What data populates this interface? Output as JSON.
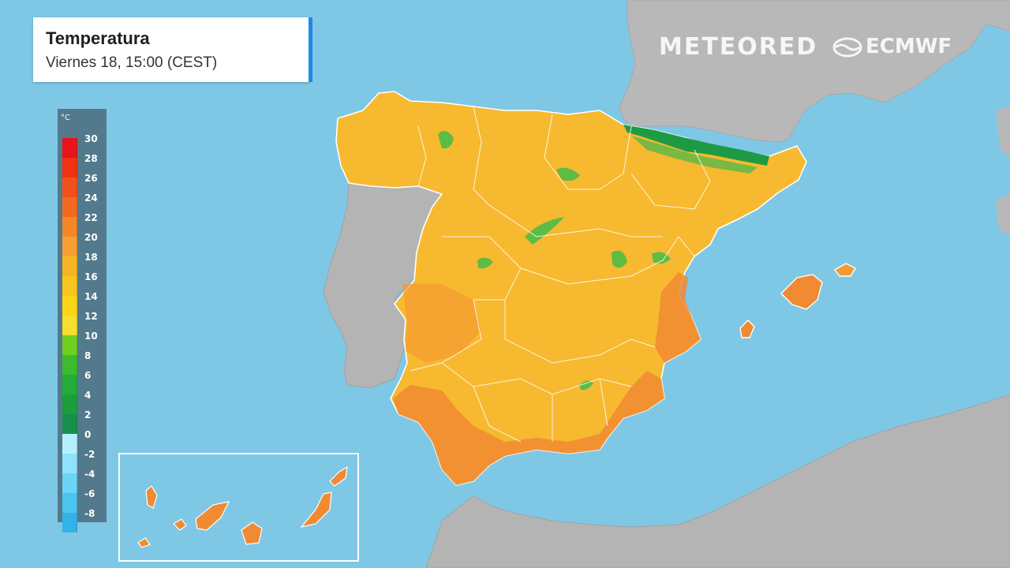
{
  "header": {
    "title": "Temperatura",
    "subtitle": "Viernes 18, 15:00 (CEST)"
  },
  "brand": {
    "meteored": "METEORED",
    "ecmwf": "ECMWF"
  },
  "legend": {
    "unit": "°C",
    "ticks": [
      "30",
      "28",
      "26",
      "24",
      "22",
      "20",
      "18",
      "16",
      "14",
      "12",
      "10",
      "8",
      "6",
      "4",
      "2",
      "0",
      "-2",
      "-4",
      "-6",
      "-8"
    ],
    "colors": [
      "#e8141b",
      "#f03210",
      "#f2501a",
      "#f36a1e",
      "#f5862a",
      "#f79f30",
      "#f7b526",
      "#f9c521",
      "#fbd518",
      "#f5df30",
      "#6fcf1e",
      "#3cbb2c",
      "#22ad38",
      "#1a9f3c",
      "#16904a",
      "#b6f0ff",
      "#8fe2fb",
      "#6cd4f6",
      "#4cc4f0",
      "#33b2ea"
    ]
  },
  "colors": {
    "sea": "#7ec8e6",
    "land_neighbor": "#b6b6b6",
    "warm_base": "#f7b930",
    "hot": "#f08a33",
    "cool": "#54b846",
    "cold": "#1d9b44"
  }
}
